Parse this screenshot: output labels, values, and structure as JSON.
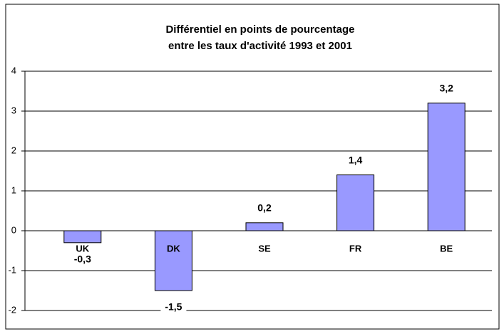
{
  "chart_data": {
    "type": "bar",
    "title": [
      "Différentiel en points de pourcentage",
      "entre les taux d'activité 1993 et 2001"
    ],
    "categories": [
      "UK",
      "DK",
      "SE",
      "FR",
      "BE"
    ],
    "values": [
      -0.3,
      -1.5,
      0.2,
      1.4,
      3.2
    ],
    "value_labels": [
      "-0,3",
      "-1,5",
      "0,2",
      "1,4",
      "3,2"
    ],
    "color": "#9999ff",
    "ylim": [
      -2,
      4
    ],
    "yticks": [
      -2,
      -1,
      0,
      1,
      2,
      3,
      4
    ],
    "grid": true
  }
}
